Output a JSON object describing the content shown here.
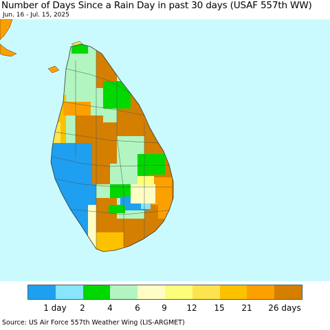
{
  "header": {
    "title": "Number of Days Since a Rain Day in past 30 days (USAF 557th WW)",
    "date_range": "Jun. 16 - Jul. 15, 2025"
  },
  "legend": {
    "colors": [
      "#1e9ff0",
      "#88e5fb",
      "#00d800",
      "#b2f5c0",
      "#fefec4",
      "#fdfd7c",
      "#fde44e",
      "#fcc200",
      "#fca000",
      "#d47f00"
    ],
    "tick_labels": [
      "1 day",
      "2",
      "4",
      "6",
      "9",
      "12",
      "15",
      "21",
      "26 days"
    ]
  },
  "footer": {
    "source": "Source: US Air Force 557th Weather Wing (LIS-ARGMET)"
  },
  "map": {
    "water_color": "#cbfafe",
    "region": "Sri Lanka"
  }
}
